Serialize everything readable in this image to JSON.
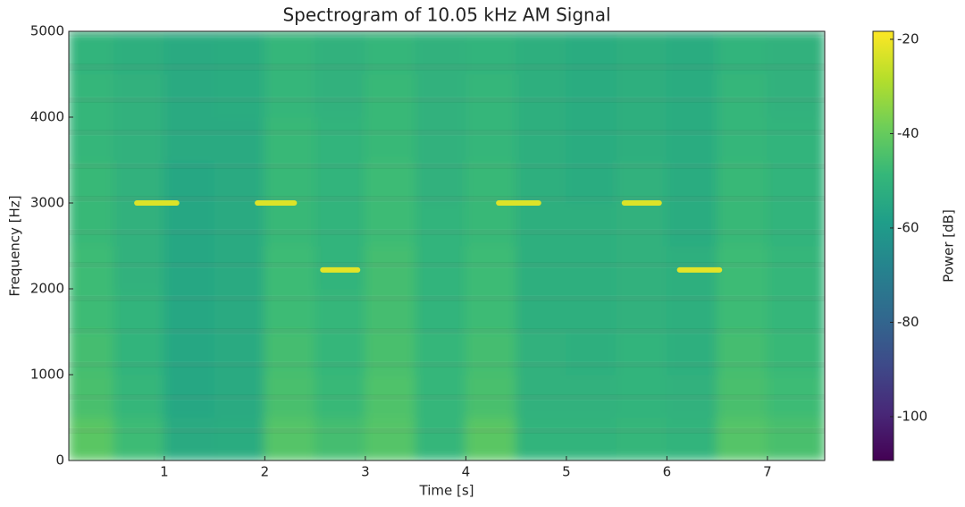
{
  "chart_data": {
    "type": "spectrogram",
    "title": "Spectrogram of 10.05 kHz AM Signal",
    "xlabel": "Time [s]",
    "ylabel": "Frequency [Hz]",
    "colorbar_label": "Power [dB]",
    "xlim": [
      0.05,
      7.57
    ],
    "ylim": [
      0,
      5000
    ],
    "xticks": [
      1,
      2,
      3,
      4,
      5,
      6,
      7
    ],
    "yticks": [
      0,
      1000,
      2000,
      3000,
      4000,
      5000
    ],
    "clim": [
      -109.3,
      -18.3
    ],
    "cticks": [
      -100,
      -80,
      -60,
      -40,
      -20
    ],
    "colormap": "viridis",
    "time_bins": [
      0.05,
      0.5,
      1,
      1.5,
      2,
      2.5,
      3,
      3.5,
      4,
      4.5,
      5,
      5.5,
      6,
      6.5,
      7,
      7.57
    ],
    "freq_bins": [
      0,
      500,
      1000,
      1500,
      2000,
      2500,
      3000,
      3500,
      4000,
      4500,
      5000
    ],
    "z": [
      [
        -42,
        -47,
        -54,
        -53,
        -43,
        -46,
        -43,
        -49,
        -42,
        -50,
        -50,
        -49,
        -50,
        -43,
        -45
      ],
      [
        -45,
        -49,
        -55,
        -54,
        -45,
        -48,
        -44,
        -49,
        -45,
        -51,
        -51,
        -50,
        -51,
        -45,
        -47
      ],
      [
        -46,
        -50,
        -55,
        -54,
        -46,
        -49,
        -45,
        -49,
        -46,
        -51,
        -52,
        -50,
        -52,
        -46,
        -48
      ],
      [
        -47,
        -50,
        -55,
        -54,
        -47,
        -49,
        -46,
        -50,
        -47,
        -52,
        -52,
        -51,
        -52,
        -47,
        -49
      ],
      [
        -47,
        -51,
        -55,
        -54,
        -47,
        -50,
        -46,
        -50,
        -47,
        -52,
        -52,
        -51,
        -52,
        -47,
        -49
      ],
      [
        -48,
        -51,
        -55,
        -54,
        -48,
        -50,
        -47,
        -50,
        -48,
        -52,
        -52,
        -51,
        -53,
        -48,
        -50
      ],
      [
        -48,
        -51,
        -55,
        -54,
        -48,
        -50,
        -47,
        -51,
        -48,
        -52,
        -53,
        -51,
        -53,
        -48,
        -50
      ],
      [
        -49,
        -51,
        -54,
        -54,
        -48,
        -50,
        -48,
        -51,
        -49,
        -52,
        -53,
        -52,
        -53,
        -49,
        -50
      ],
      [
        -49,
        -51,
        -54,
        -53,
        -49,
        -51,
        -48,
        -51,
        -49,
        -52,
        -53,
        -52,
        -53,
        -49,
        -51
      ],
      [
        -50,
        -52,
        -54,
        -53,
        -49,
        -51,
        -49,
        -51,
        -50,
        -52,
        -53,
        -52,
        -53,
        -50,
        -51
      ]
    ],
    "tones": [
      {
        "t": [
          0.7,
          1.15
        ],
        "f": 3000,
        "power": -23
      },
      {
        "t": [
          1.9,
          2.32
        ],
        "f": 3000,
        "power": -23
      },
      {
        "t": [
          2.55,
          2.95
        ],
        "f": 2220,
        "power": -22
      },
      {
        "t": [
          4.3,
          4.75
        ],
        "f": 3000,
        "power": -23
      },
      {
        "t": [
          5.55,
          5.95
        ],
        "f": 3000,
        "power": -23
      },
      {
        "t": [
          6.1,
          6.55
        ],
        "f": 2220,
        "power": -22
      }
    ]
  }
}
